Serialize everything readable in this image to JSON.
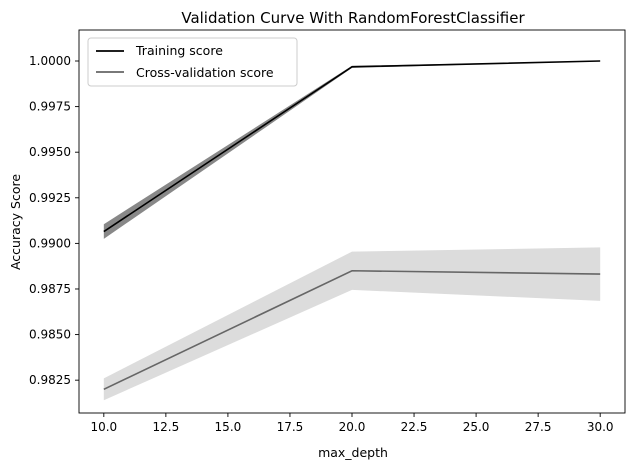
{
  "chart_data": {
    "type": "line",
    "title": "Validation Curve With RandomForestClassifier",
    "xlabel": "max_depth",
    "ylabel": "Accuracy Score",
    "x": [
      10,
      20,
      30
    ],
    "xlim": [
      9.0,
      31.0
    ],
    "ylim": [
      0.9807,
      1.0017
    ],
    "xticks": [
      "10.0",
      "12.5",
      "15.0",
      "17.5",
      "20.0",
      "22.5",
      "25.0",
      "27.5",
      "30.0"
    ],
    "yticks": [
      "0.9825",
      "0.9850",
      "0.9875",
      "0.9900",
      "0.9925",
      "0.9950",
      "0.9975",
      "1.0000"
    ],
    "grid": false,
    "legend_position": "top-left",
    "series": [
      {
        "name": "Training score",
        "color": "#000000",
        "band_color": "#888888",
        "values": [
          0.99065,
          0.99968,
          1.0
        ],
        "lower": [
          0.99025,
          0.99962,
          1.0
        ],
        "upper": [
          0.99105,
          0.99974,
          1.0
        ]
      },
      {
        "name": "Cross-validation score",
        "color": "#666666",
        "band_color": "#dcdcdc",
        "values": [
          0.982,
          0.9885,
          0.98832
        ],
        "lower": [
          0.9814,
          0.98745,
          0.98685
        ],
        "upper": [
          0.9826,
          0.98955,
          0.98978
        ]
      }
    ]
  }
}
